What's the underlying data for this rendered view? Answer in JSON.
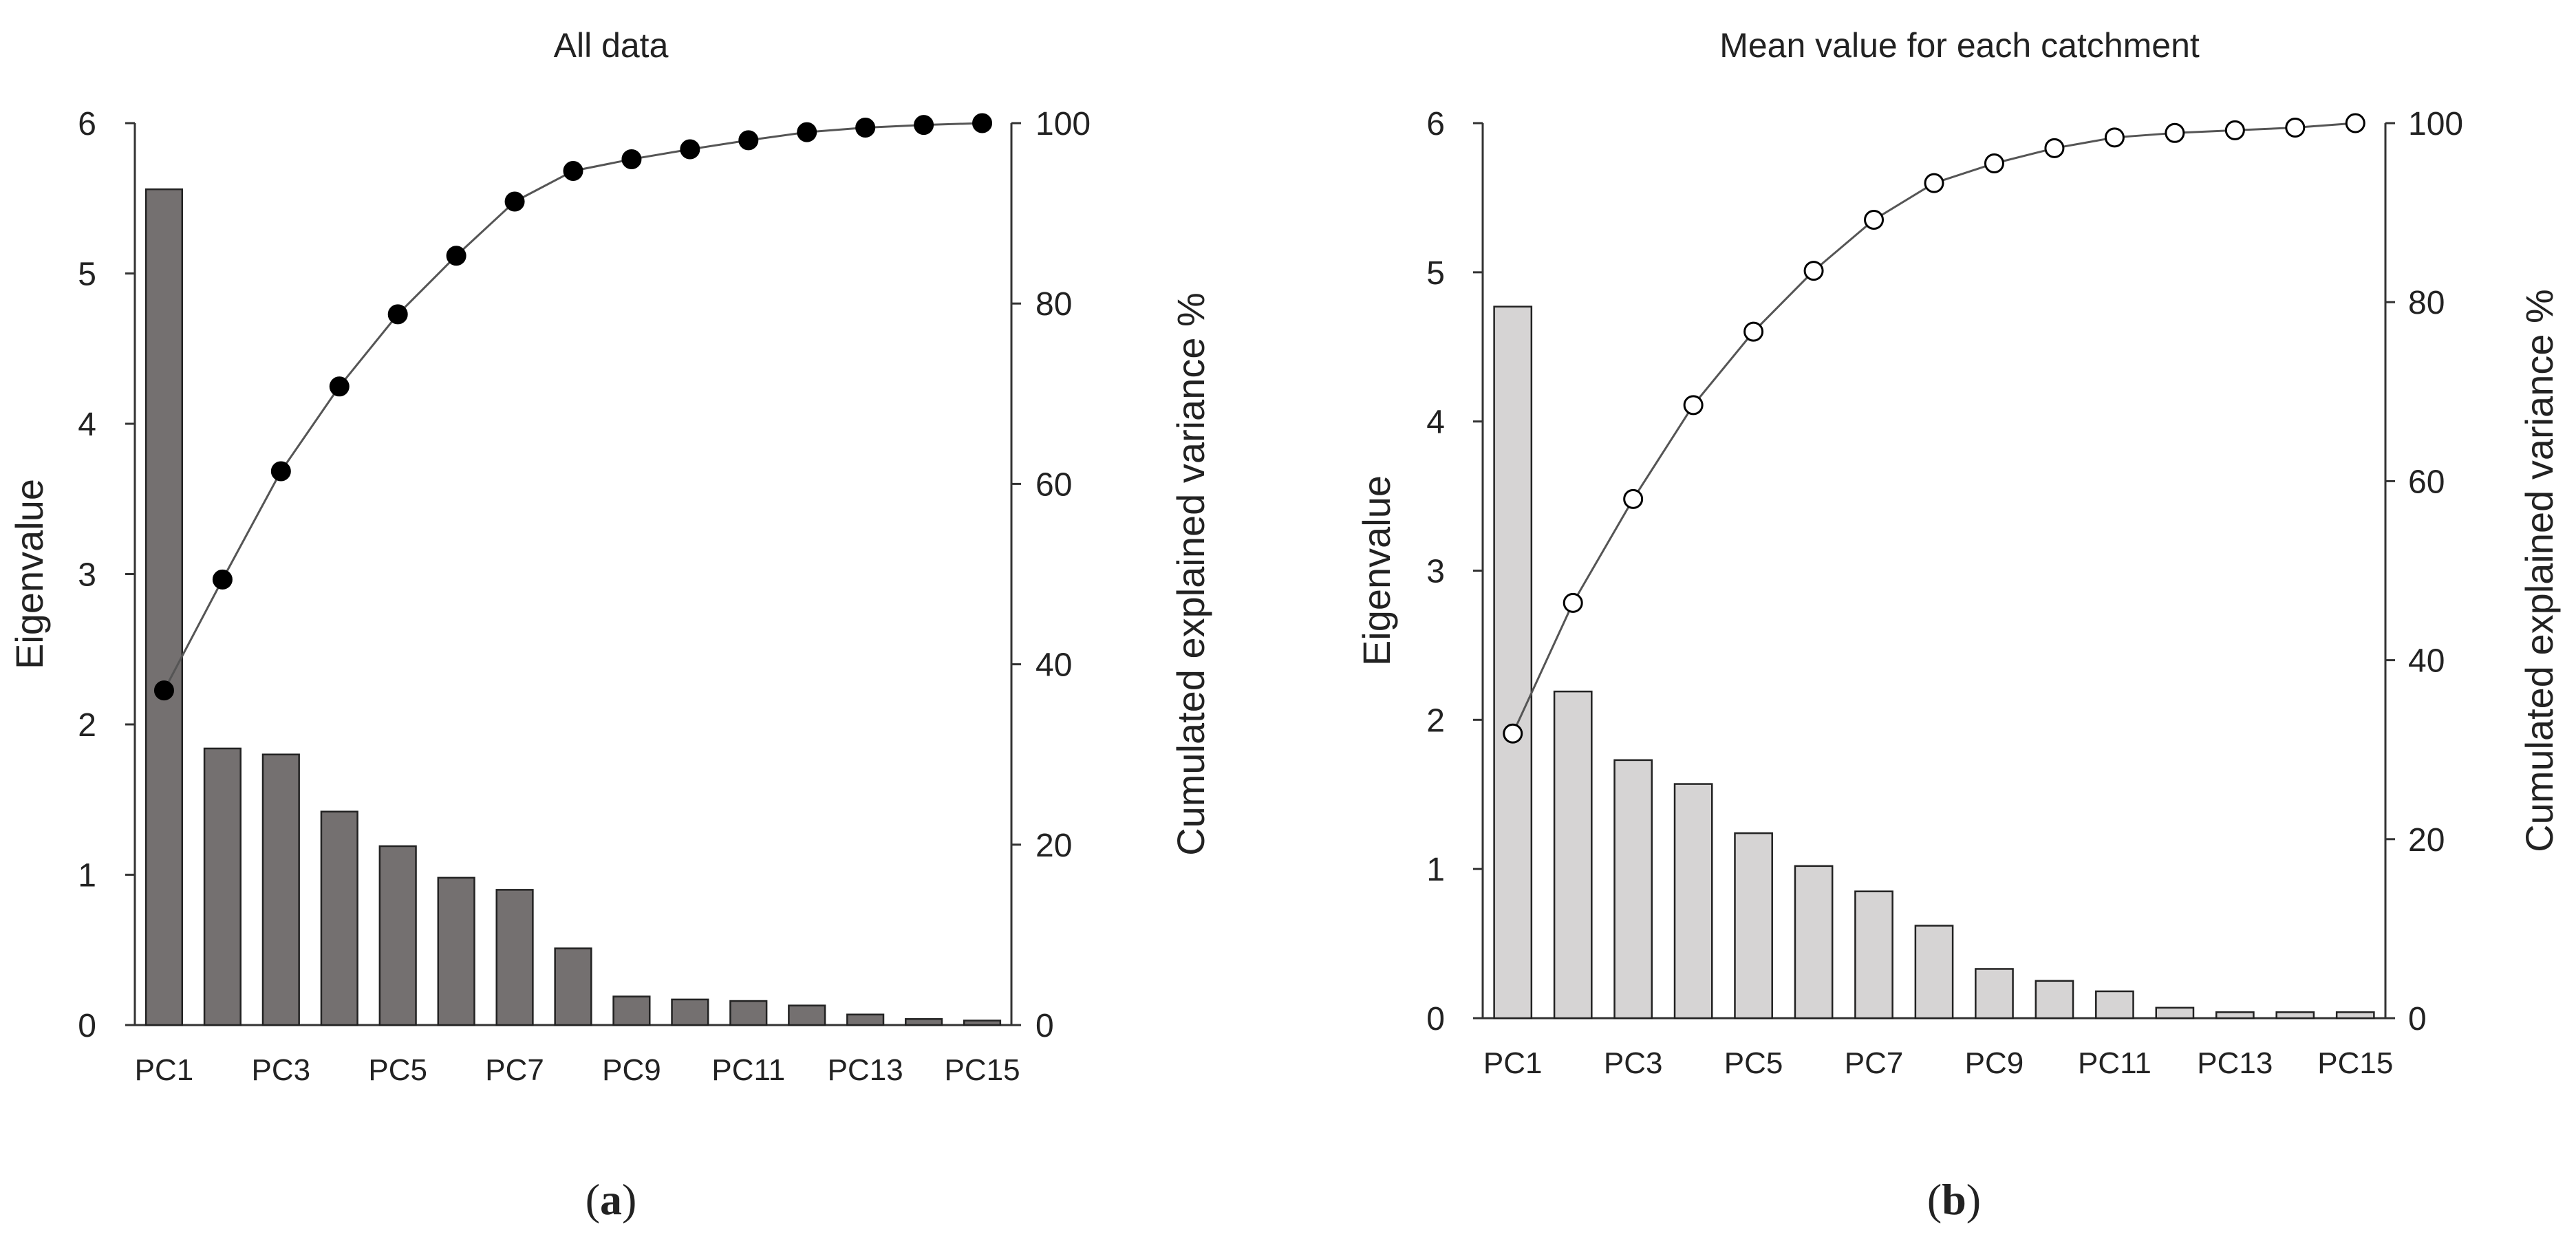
{
  "chart_data": [
    {
      "type": "bar",
      "title": "All data",
      "caption_letter": "a",
      "xlabel": "",
      "ylabel": "Eigenvalue",
      "y2label": "Cumulated explained variance %",
      "ylim": [
        0,
        6
      ],
      "y2lim": [
        0,
        100
      ],
      "yticks": [
        "0",
        "1",
        "2",
        "3",
        "4",
        "5",
        "6"
      ],
      "y2ticks": [
        "0",
        "20",
        "40",
        "60",
        "80",
        "100"
      ],
      "categories": [
        "PC1",
        "PC2",
        "PC3",
        "PC4",
        "PC5",
        "PC6",
        "PC7",
        "PC8",
        "PC9",
        "PC10",
        "PC11",
        "PC12",
        "PC13",
        "PC14",
        "PC15"
      ],
      "xtick_labels": [
        "PC1",
        "PC3",
        "PC5",
        "PC7",
        "PC9",
        "PC11",
        "PC13",
        "PC15"
      ],
      "bar_color": "#747070",
      "marker_fill": "#000000",
      "series": [
        {
          "name": "Eigenvalue",
          "axis": "left",
          "kind": "bar",
          "values": [
            5.56,
            1.84,
            1.8,
            1.42,
            1.19,
            0.98,
            0.9,
            0.51,
            0.19,
            0.17,
            0.16,
            0.13,
            0.07,
            0.04,
            0.03
          ]
        },
        {
          "name": "Cumulated explained variance %",
          "axis": "right",
          "kind": "line",
          "values": [
            37.1,
            49.4,
            61.4,
            70.8,
            78.8,
            85.3,
            91.3,
            94.7,
            96.0,
            97.1,
            98.1,
            99.0,
            99.5,
            99.8,
            100.0
          ]
        }
      ]
    },
    {
      "type": "bar",
      "title": "Mean value for each catchment",
      "caption_letter": "b",
      "xlabel": "",
      "ylabel": "Eigenvalue",
      "y2label": "Cumulated explained variance %",
      "ylim": [
        0,
        6
      ],
      "y2lim": [
        0,
        100
      ],
      "yticks": [
        "0",
        "1",
        "2",
        "3",
        "4",
        "5",
        "6"
      ],
      "y2ticks": [
        "0",
        "20",
        "40",
        "60",
        "80",
        "100"
      ],
      "categories": [
        "PC1",
        "PC2",
        "PC3",
        "PC4",
        "PC5",
        "PC6",
        "PC7",
        "PC8",
        "PC9",
        "PC10",
        "PC11",
        "PC12",
        "PC13",
        "PC14",
        "PC15"
      ],
      "xtick_labels": [
        "PC1",
        "PC3",
        "PC5",
        "PC7",
        "PC9",
        "PC11",
        "PC13",
        "PC15"
      ],
      "bar_color": "#d6d4d4",
      "marker_fill": "#ffffff",
      "series": [
        {
          "name": "Eigenvalue",
          "axis": "left",
          "kind": "bar",
          "values": [
            4.77,
            2.19,
            1.73,
            1.57,
            1.24,
            1.02,
            0.85,
            0.62,
            0.33,
            0.25,
            0.18,
            0.07,
            0.04,
            0.04,
            0.04
          ]
        },
        {
          "name": "Cumulated explained variance %",
          "axis": "right",
          "kind": "line",
          "values": [
            31.8,
            46.4,
            58.0,
            68.5,
            76.7,
            83.5,
            89.2,
            93.3,
            95.5,
            97.2,
            98.4,
            98.9,
            99.2,
            99.5,
            100.0
          ]
        }
      ]
    }
  ]
}
